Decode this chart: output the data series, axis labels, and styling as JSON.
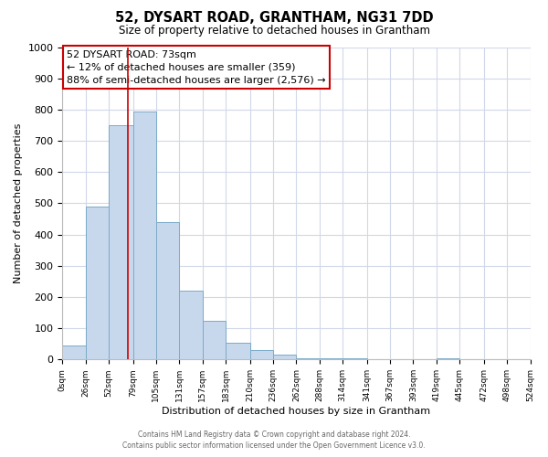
{
  "title": "52, DYSART ROAD, GRANTHAM, NG31 7DD",
  "subtitle": "Size of property relative to detached houses in Grantham",
  "xlabel": "Distribution of detached houses by size in Grantham",
  "ylabel": "Number of detached properties",
  "bar_edges": [
    0,
    26,
    52,
    79,
    105,
    131,
    157,
    183,
    210,
    236,
    262,
    288,
    314,
    341,
    367,
    393,
    419,
    445,
    472,
    498,
    524
  ],
  "bar_heights": [
    45,
    490,
    750,
    795,
    440,
    220,
    125,
    55,
    30,
    15,
    5,
    5,
    5,
    0,
    0,
    0,
    5,
    0,
    0,
    0
  ],
  "bar_color": "#c8d8ec",
  "bar_edgecolor": "#7aaac8",
  "vline_x": 73,
  "vline_color": "#cc0000",
  "ylim": [
    0,
    1000
  ],
  "yticks": [
    0,
    100,
    200,
    300,
    400,
    500,
    600,
    700,
    800,
    900,
    1000
  ],
  "xtick_labels": [
    "0sqm",
    "26sqm",
    "52sqm",
    "79sqm",
    "105sqm",
    "131sqm",
    "157sqm",
    "183sqm",
    "210sqm",
    "236sqm",
    "262sqm",
    "288sqm",
    "314sqm",
    "341sqm",
    "367sqm",
    "393sqm",
    "419sqm",
    "445sqm",
    "472sqm",
    "498sqm",
    "524sqm"
  ],
  "annotation_title": "52 DYSART ROAD: 73sqm",
  "annotation_line1": "← 12% of detached houses are smaller (359)",
  "annotation_line2": "88% of semi-detached houses are larger (2,576) →",
  "annotation_box_color": "#ffffff",
  "annotation_box_edgecolor": "#cc0000",
  "footer_line1": "Contains HM Land Registry data © Crown copyright and database right 2024.",
  "footer_line2": "Contains public sector information licensed under the Open Government Licence v3.0.",
  "background_color": "#ffffff",
  "grid_color": "#d0d8e8"
}
